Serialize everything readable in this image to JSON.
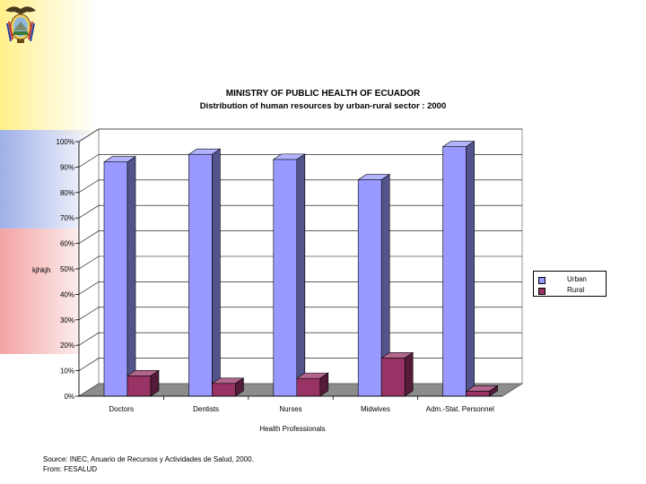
{
  "header": {
    "emblem_icon": "ecuador-coat-of-arms-icon"
  },
  "chart_data": {
    "type": "bar",
    "title": "MINISTRY OF PUBLIC HEALTH OF ECUADOR",
    "subtitle": "Distribution of human resources by urban-rural sector :  2000",
    "xlabel": "Health Professionals",
    "ylabel": "",
    "ylim": [
      0,
      100
    ],
    "yticks": [
      "0%",
      "10%",
      "20%",
      "30%",
      "40%",
      "50%",
      "60%",
      "70%",
      "80%",
      "90%",
      "100%"
    ],
    "categories": [
      "Doctors",
      "Dentists",
      "Nurses",
      "Midwives",
      "Adm.-Stat. Personnel"
    ],
    "series": [
      {
        "name": "Urban",
        "values": [
          92,
          95,
          93,
          85,
          98
        ],
        "color": "#9999ff"
      },
      {
        "name": "Rural",
        "values": [
          8,
          5,
          7,
          15,
          2
        ],
        "color": "#993366"
      }
    ],
    "legend_position": "right",
    "grid": true,
    "three_d": true
  },
  "annotations": {
    "stray_text": "kjhkjh"
  },
  "footer": {
    "source_line1": "Source: INEC, Anuario de Recursos y Actividades de Salud, 2000.",
    "source_line2": "From: FESALUD"
  }
}
